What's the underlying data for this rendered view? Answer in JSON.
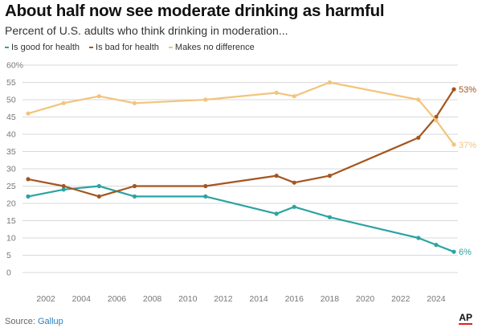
{
  "header": {
    "title": "About half now see moderate drinking as harmful",
    "subtitle": "Percent of U.S. adults who think drinking in moderation..."
  },
  "footer": {
    "source_label": "Source:",
    "source_name": "Gallup",
    "logo": "AP"
  },
  "colors": {
    "good": "#2ba3a3",
    "bad": "#a4561f",
    "nodiff": "#f2c47c",
    "grid": "#d9d9d9",
    "tick": "#777777"
  },
  "chart_data": {
    "type": "line",
    "title": "About half now see moderate drinking as harmful",
    "subtitle": "Percent of U.S. adults who think drinking in moderation...",
    "xlabel": "",
    "ylabel": "",
    "xlim": [
      2001,
      2025
    ],
    "ylim": [
      0,
      60
    ],
    "x_ticks": [
      2002,
      2004,
      2006,
      2008,
      2010,
      2012,
      2014,
      2016,
      2018,
      2020,
      2022,
      2024
    ],
    "y_ticks": [
      0,
      5,
      10,
      15,
      20,
      25,
      30,
      35,
      40,
      45,
      50,
      55,
      60
    ],
    "y_tick_labels": [
      "0",
      "5",
      "10",
      "15",
      "20",
      "25",
      "30",
      "35",
      "40",
      "45",
      "50",
      "55",
      "60%"
    ],
    "grid": true,
    "legend_position": "top-left",
    "series": [
      {
        "name": "Is good for health",
        "key": "good",
        "x": [
          2001,
          2003,
          2005,
          2007,
          2011,
          2015,
          2016,
          2018,
          2023,
          2024,
          2025
        ],
        "values": [
          22,
          24,
          25,
          22,
          22,
          17,
          19,
          16,
          10,
          8,
          6
        ],
        "end_label": "6%"
      },
      {
        "name": "Is bad for health",
        "key": "bad",
        "x": [
          2001,
          2003,
          2005,
          2007,
          2011,
          2015,
          2016,
          2018,
          2023,
          2024,
          2025
        ],
        "values": [
          27,
          25,
          22,
          25,
          25,
          28,
          26,
          28,
          39,
          45,
          53
        ],
        "end_label": "53%"
      },
      {
        "name": "Makes no difference",
        "key": "nodiff",
        "x": [
          2001,
          2003,
          2005,
          2007,
          2011,
          2015,
          2016,
          2018,
          2023,
          2024,
          2025
        ],
        "values": [
          46,
          49,
          51,
          49,
          50,
          52,
          51,
          55,
          50,
          44,
          37
        ],
        "end_label": "37%"
      }
    ]
  }
}
